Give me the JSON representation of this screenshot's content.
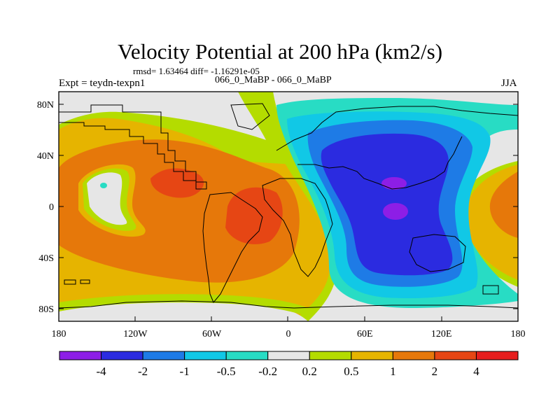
{
  "title": "Velocity Potential at 200 hPa (km2/s)",
  "stats_line": "rmsd= 1.63464 diff= -1.16291e-05",
  "left_label": "Expt = teydn-texpn1",
  "center_label": "066_0_MaBP - 066_0_MaBP",
  "right_label": "JJA",
  "chart_data": {
    "type": "contour_map",
    "title": "Velocity Potential at 200 hPa (km2/s)",
    "units": "km2/s",
    "x_axis": {
      "range": [
        -180,
        180
      ],
      "ticks": [
        -180,
        -120,
        -60,
        0,
        60,
        120,
        180
      ],
      "tick_labels": [
        "180",
        "120W",
        "60W",
        "0",
        "60E",
        "120E",
        "180"
      ]
    },
    "y_axis": {
      "range": [
        -90,
        90
      ],
      "ticks": [
        80,
        40,
        0,
        -40,
        -80
      ],
      "tick_labels": [
        "80N",
        "40N",
        "0",
        "40S",
        "80S"
      ]
    },
    "colorbar": {
      "boundaries": [
        "-4",
        "-2",
        "-1",
        "-0.5",
        "-0.2",
        "0.2",
        "0.5",
        "1",
        "2",
        "4"
      ],
      "colors": [
        "#8d1ee6",
        "#2b2be0",
        "#1e7be6",
        "#11c8e6",
        "#28dcc4",
        "#e6e6e6",
        "#b4dc00",
        "#e6b400",
        "#e6780a",
        "#e64614",
        "#e61e1e"
      ]
    },
    "features": [
      {
        "name": "positive maximum",
        "level": "2 to 4",
        "lon": -35,
        "lat": 0
      },
      {
        "name": "positive maximum",
        "level": "2 to 4",
        "lon": -95,
        "lat": 25
      },
      {
        "name": "negative minimum",
        "level": "< -4",
        "lon": 84,
        "lat": 22
      },
      {
        "name": "negative minimum",
        "level": "< -4",
        "lon": 84,
        "lat": -3
      },
      {
        "name": "local minimum",
        "level": "-0.5 to -0.2",
        "lon": -143,
        "lat": 17
      }
    ]
  }
}
